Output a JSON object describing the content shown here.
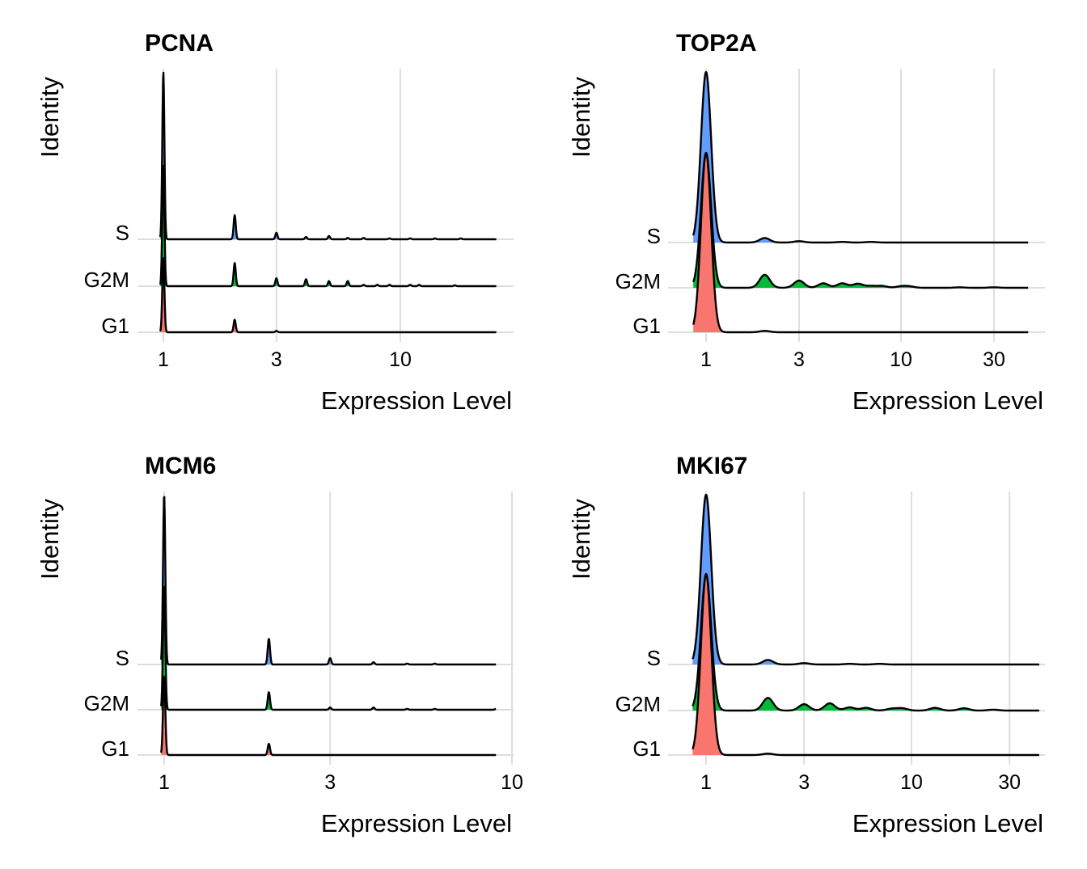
{
  "chart_data": [
    {
      "type": "ridgeline",
      "title": "PCNA",
      "xlabel": "Expression Level",
      "ylabel": "Identity",
      "x_scale": "log10",
      "xlim": [
        0.78,
        30
      ],
      "x_ticks": [
        1,
        3,
        10
      ],
      "x_tick_labels": [
        "1",
        "3",
        "10"
      ],
      "groups": [
        "S",
        "G2M",
        "G1"
      ],
      "colors": {
        "S": "#619CFF",
        "G2M": "#00BA38",
        "G1": "#F8766D"
      },
      "bandwidth_log10": 0.0045,
      "x_range": [
        0.97,
        25.5
      ],
      "peaks": {
        "S": [
          [
            1,
            3.6
          ],
          [
            2,
            0.52
          ],
          [
            3,
            0.14
          ],
          [
            4,
            0.05
          ],
          [
            5,
            0.07
          ],
          [
            6,
            0.03
          ],
          [
            7,
            0.03
          ],
          [
            9,
            0.02
          ],
          [
            11,
            0.02
          ],
          [
            14,
            0.02
          ],
          [
            18,
            0.02
          ]
        ],
        "G2M": [
          [
            1,
            2.6
          ],
          [
            2,
            0.5
          ],
          [
            3,
            0.17
          ],
          [
            4,
            0.15
          ],
          [
            5,
            0.11
          ],
          [
            6,
            0.11
          ],
          [
            7,
            0.03
          ],
          [
            8,
            0.03
          ],
          [
            9,
            0.03
          ],
          [
            11,
            0.03
          ],
          [
            12,
            0.03
          ],
          [
            17,
            0.02
          ]
        ],
        "G1": [
          [
            1,
            1.6
          ],
          [
            2,
            0.27
          ],
          [
            3,
            0.03
          ]
        ]
      }
    },
    {
      "type": "ridgeline",
      "title": "TOP2A",
      "xlabel": "Expression Level",
      "ylabel": "Identity",
      "x_scale": "log10",
      "xlim": [
        0.74,
        56
      ],
      "x_ticks": [
        1,
        3,
        10,
        30
      ],
      "x_tick_labels": [
        "1",
        "3",
        "10",
        "30"
      ],
      "groups": [
        "S",
        "G2M",
        "G1"
      ],
      "colors": {
        "S": "#619CFF",
        "G2M": "#00BA38",
        "G1": "#F8766D"
      },
      "bandwidth_log10": 0.026,
      "x_range": [
        0.86,
        45
      ],
      "peaks": {
        "S": [
          [
            1,
            3.8
          ],
          [
            2,
            0.1
          ],
          [
            3,
            0.03
          ],
          [
            5,
            0.015
          ],
          [
            7,
            0.015
          ]
        ],
        "G2M": [
          [
            1,
            3.0
          ],
          [
            2,
            0.29
          ],
          [
            3,
            0.16
          ],
          [
            4,
            0.1
          ],
          [
            5,
            0.1
          ],
          [
            6,
            0.09
          ],
          [
            7,
            0.04
          ],
          [
            8,
            0.04
          ],
          [
            10,
            0.03
          ],
          [
            11,
            0.03
          ],
          [
            20,
            0.01
          ],
          [
            30,
            0.01
          ]
        ],
        "G1": [
          [
            1,
            4.0
          ],
          [
            2,
            0.03
          ]
        ]
      }
    },
    {
      "type": "ridgeline",
      "title": "MCM6",
      "xlabel": "Expression Level",
      "ylabel": "Identity",
      "x_scale": "log10",
      "xlim": [
        0.84,
        10
      ],
      "x_ticks": [
        1,
        3,
        10
      ],
      "x_tick_labels": [
        "1",
        "3",
        "10"
      ],
      "groups": [
        "S",
        "G2M",
        "G1"
      ],
      "colors": {
        "S": "#619CFF",
        "G2M": "#00BA38",
        "G1": "#F8766D"
      },
      "bandwidth_log10": 0.0033,
      "x_range": [
        0.98,
        9
      ],
      "peaks": {
        "S": [
          [
            1,
            3.75
          ],
          [
            2,
            0.57
          ],
          [
            3,
            0.14
          ],
          [
            4,
            0.05
          ],
          [
            5,
            0.02
          ],
          [
            6,
            0.02
          ]
        ],
        "G2M": [
          [
            1,
            2.75
          ],
          [
            2,
            0.39
          ],
          [
            3,
            0.05
          ],
          [
            4,
            0.05
          ],
          [
            5,
            0.02
          ],
          [
            6,
            0.02
          ],
          [
            9,
            0.02
          ]
        ],
        "G1": [
          [
            1,
            1.75
          ],
          [
            2,
            0.25
          ]
        ]
      }
    },
    {
      "type": "ridgeline",
      "title": "MKI67",
      "xlabel": "Expression Level",
      "ylabel": "Identity",
      "x_scale": "log10",
      "xlim": [
        0.74,
        50
      ],
      "x_ticks": [
        1,
        3,
        10,
        30
      ],
      "x_tick_labels": [
        "1",
        "3",
        "10",
        "30"
      ],
      "groups": [
        "S",
        "G2M",
        "G1"
      ],
      "colors": {
        "S": "#619CFF",
        "G2M": "#00BA38",
        "G1": "#F8766D"
      },
      "bandwidth_log10": 0.025,
      "x_range": [
        0.86,
        42
      ],
      "peaks": {
        "S": [
          [
            1,
            3.75
          ],
          [
            2,
            0.1
          ],
          [
            3,
            0.03
          ],
          [
            5,
            0.015
          ],
          [
            7,
            0.015
          ]
        ],
        "G2M": [
          [
            1,
            3.0
          ],
          [
            2,
            0.28
          ],
          [
            3,
            0.14
          ],
          [
            4,
            0.16
          ],
          [
            5,
            0.07
          ],
          [
            6,
            0.06
          ],
          [
            8,
            0.04
          ],
          [
            9,
            0.05
          ],
          [
            13,
            0.06
          ],
          [
            18,
            0.05
          ],
          [
            25,
            0.02
          ]
        ],
        "G1": [
          [
            1,
            4.0
          ],
          [
            2,
            0.03
          ]
        ]
      }
    }
  ]
}
